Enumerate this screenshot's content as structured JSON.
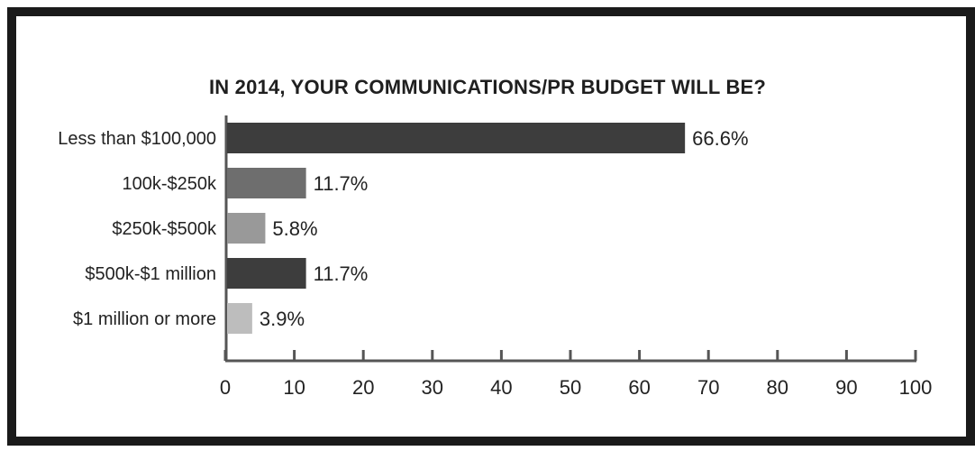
{
  "chart_data": {
    "type": "bar",
    "orientation": "horizontal",
    "title": "IN 2014, YOUR COMMUNICATIONS/PR BUDGET WILL BE?",
    "categories": [
      "Less than $100,000",
      "100k-$250k",
      "$250k-$500k",
      "$500k-$1 million",
      "$1 million or more"
    ],
    "values": [
      66.6,
      11.7,
      5.8,
      11.7,
      3.9
    ],
    "value_labels": [
      "66.6%",
      "11.7%",
      "5.8%",
      "11.7%",
      "3.9%"
    ],
    "bar_colors": [
      "#3d3d3d",
      "#6e6e6e",
      "#999999",
      "#3d3d3d",
      "#bdbdbd"
    ],
    "xlim": [
      0,
      100
    ],
    "xticks": [
      0,
      10,
      20,
      30,
      40,
      50,
      60,
      70,
      80,
      90,
      100
    ],
    "xlabel": "",
    "ylabel": "",
    "grid": false,
    "axis_color": "#555555"
  }
}
